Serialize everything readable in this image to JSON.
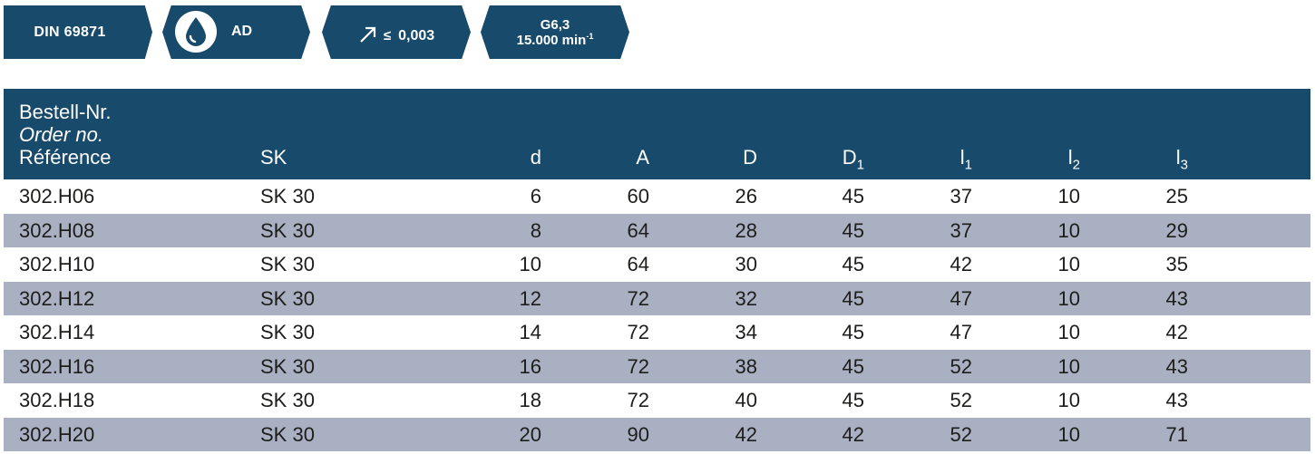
{
  "badges": {
    "standard": "DIN 69871",
    "coolant_icon": "water-drop-icon",
    "coolant_label": "AD",
    "runout_icon": "diagonal-arrow-icon",
    "runout_symbol": "≤",
    "runout_value": "0,003",
    "balance_grade": "G6,3",
    "balance_speed": "15.000 min",
    "balance_speed_exp": "-1"
  },
  "colors": {
    "header": "#174a6b",
    "row_alt": "#a8b0c2",
    "text": "#1d1d1b"
  },
  "table": {
    "headers": {
      "ref_de": "Bestell-Nr.",
      "ref_en": "Order no.",
      "ref_fr": "Référence",
      "sk": "SK",
      "d": "d",
      "A": "A",
      "D": "D",
      "D1_base": "D",
      "D1_sub": "1",
      "l1_base": "l",
      "l1_sub": "1",
      "l2_base": "l",
      "l2_sub": "2",
      "l3_base": "l",
      "l3_sub": "3"
    },
    "rows": [
      {
        "ref": "302.H06",
        "sk": "SK 30",
        "d": "6",
        "A": "60",
        "D": "26",
        "D1": "45",
        "l1": "37",
        "l2": "10",
        "l3": "25"
      },
      {
        "ref": "302.H08",
        "sk": "SK 30",
        "d": "8",
        "A": "64",
        "D": "28",
        "D1": "45",
        "l1": "37",
        "l2": "10",
        "l3": "29"
      },
      {
        "ref": "302.H10",
        "sk": "SK 30",
        "d": "10",
        "A": "64",
        "D": "30",
        "D1": "45",
        "l1": "42",
        "l2": "10",
        "l3": "35"
      },
      {
        "ref": "302.H12",
        "sk": "SK 30",
        "d": "12",
        "A": "72",
        "D": "32",
        "D1": "45",
        "l1": "47",
        "l2": "10",
        "l3": "43"
      },
      {
        "ref": "302.H14",
        "sk": "SK 30",
        "d": "14",
        "A": "72",
        "D": "34",
        "D1": "45",
        "l1": "47",
        "l2": "10",
        "l3": "42"
      },
      {
        "ref": "302.H16",
        "sk": "SK 30",
        "d": "16",
        "A": "72",
        "D": "38",
        "D1": "45",
        "l1": "52",
        "l2": "10",
        "l3": "43"
      },
      {
        "ref": "302.H18",
        "sk": "SK 30",
        "d": "18",
        "A": "72",
        "D": "40",
        "D1": "45",
        "l1": "52",
        "l2": "10",
        "l3": "43"
      },
      {
        "ref": "302.H20",
        "sk": "SK 30",
        "d": "20",
        "A": "90",
        "D": "42",
        "D1": "42",
        "l1": "52",
        "l2": "10",
        "l3": "71"
      }
    ]
  }
}
